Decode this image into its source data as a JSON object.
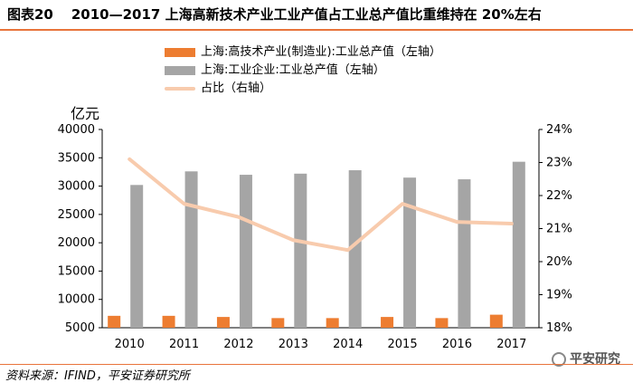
{
  "header": {
    "figure_label": "图表20",
    "title": "2010—2017 上海高新技术产业工业产值占工业总产值比重维持在 20%左右"
  },
  "colors": {
    "hightech": "#ed7d31",
    "total": "#a5a5a5",
    "ratio": "#f8cbad",
    "accent": "#e8743b"
  },
  "chart_data": {
    "type": "bar",
    "categories": [
      "2010",
      "2011",
      "2012",
      "2013",
      "2014",
      "2015",
      "2016",
      "2017"
    ],
    "ylabel": "亿元",
    "y_left": {
      "min": 5000,
      "max": 40000,
      "ticks": [
        "5000",
        "10000",
        "15000",
        "20000",
        "25000",
        "30000",
        "35000",
        "40000"
      ]
    },
    "y_right": {
      "min": 18,
      "max": 24,
      "ticks": [
        "18%",
        "19%",
        "20%",
        "21%",
        "22%",
        "23%",
        "24%"
      ]
    },
    "series": [
      {
        "name": "上海:高技术产业(制造业):工业总产值（左轴）",
        "type": "bar",
        "axis": "left",
        "values": [
          7100,
          7100,
          6900,
          6700,
          6700,
          6900,
          6700,
          7300
        ]
      },
      {
        "name": "上海:工业企业:工业总产值（左轴）",
        "type": "bar",
        "axis": "left",
        "values": [
          30200,
          32600,
          32000,
          32200,
          32800,
          31500,
          31200,
          34300
        ]
      },
      {
        "name": "占比（右轴）",
        "type": "line",
        "axis": "right",
        "values": [
          23.1,
          21.75,
          21.35,
          20.65,
          20.35,
          21.75,
          21.2,
          21.15
        ]
      }
    ],
    "legend_position": "top"
  },
  "source": "资料来源：IFIND，平安证券研究所",
  "brand": "平安研究"
}
